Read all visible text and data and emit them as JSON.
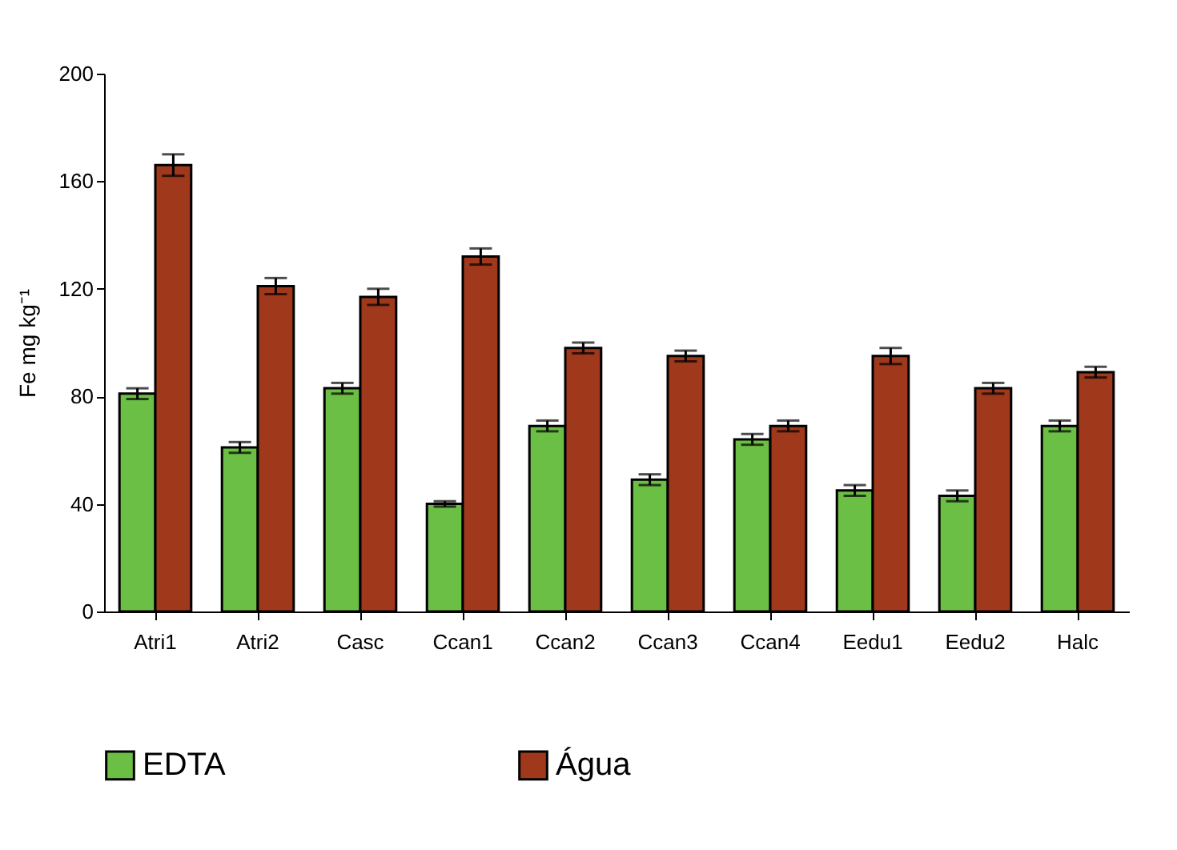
{
  "chart_data": {
    "type": "bar",
    "ylabel": "Fe mg kg⁻¹",
    "categories": [
      "Atri1",
      "Atri2",
      "Casc",
      "Ccan1",
      "Ccan2",
      "Ccan3",
      "Ccan4",
      "Eedu1",
      "Eedu2",
      "Halc"
    ],
    "series": [
      {
        "name": "EDTA",
        "color": "#6cbf45",
        "values": [
          81,
          61,
          83,
          40,
          69,
          49,
          64,
          45,
          43,
          69
        ],
        "errors": [
          2,
          2,
          2,
          1,
          2,
          2,
          2,
          2,
          2,
          2
        ]
      },
      {
        "name": "Água",
        "color": "#a0381c",
        "values": [
          166,
          121,
          117,
          132,
          98,
          95,
          69,
          95,
          83,
          89
        ],
        "errors": [
          4,
          3,
          3,
          3,
          2,
          2,
          2,
          3,
          2,
          2
        ]
      }
    ],
    "ylim": [
      0,
      200
    ],
    "yticks": [
      0,
      40,
      80,
      120,
      160,
      200
    ],
    "grid": false,
    "legend": "bottom"
  }
}
